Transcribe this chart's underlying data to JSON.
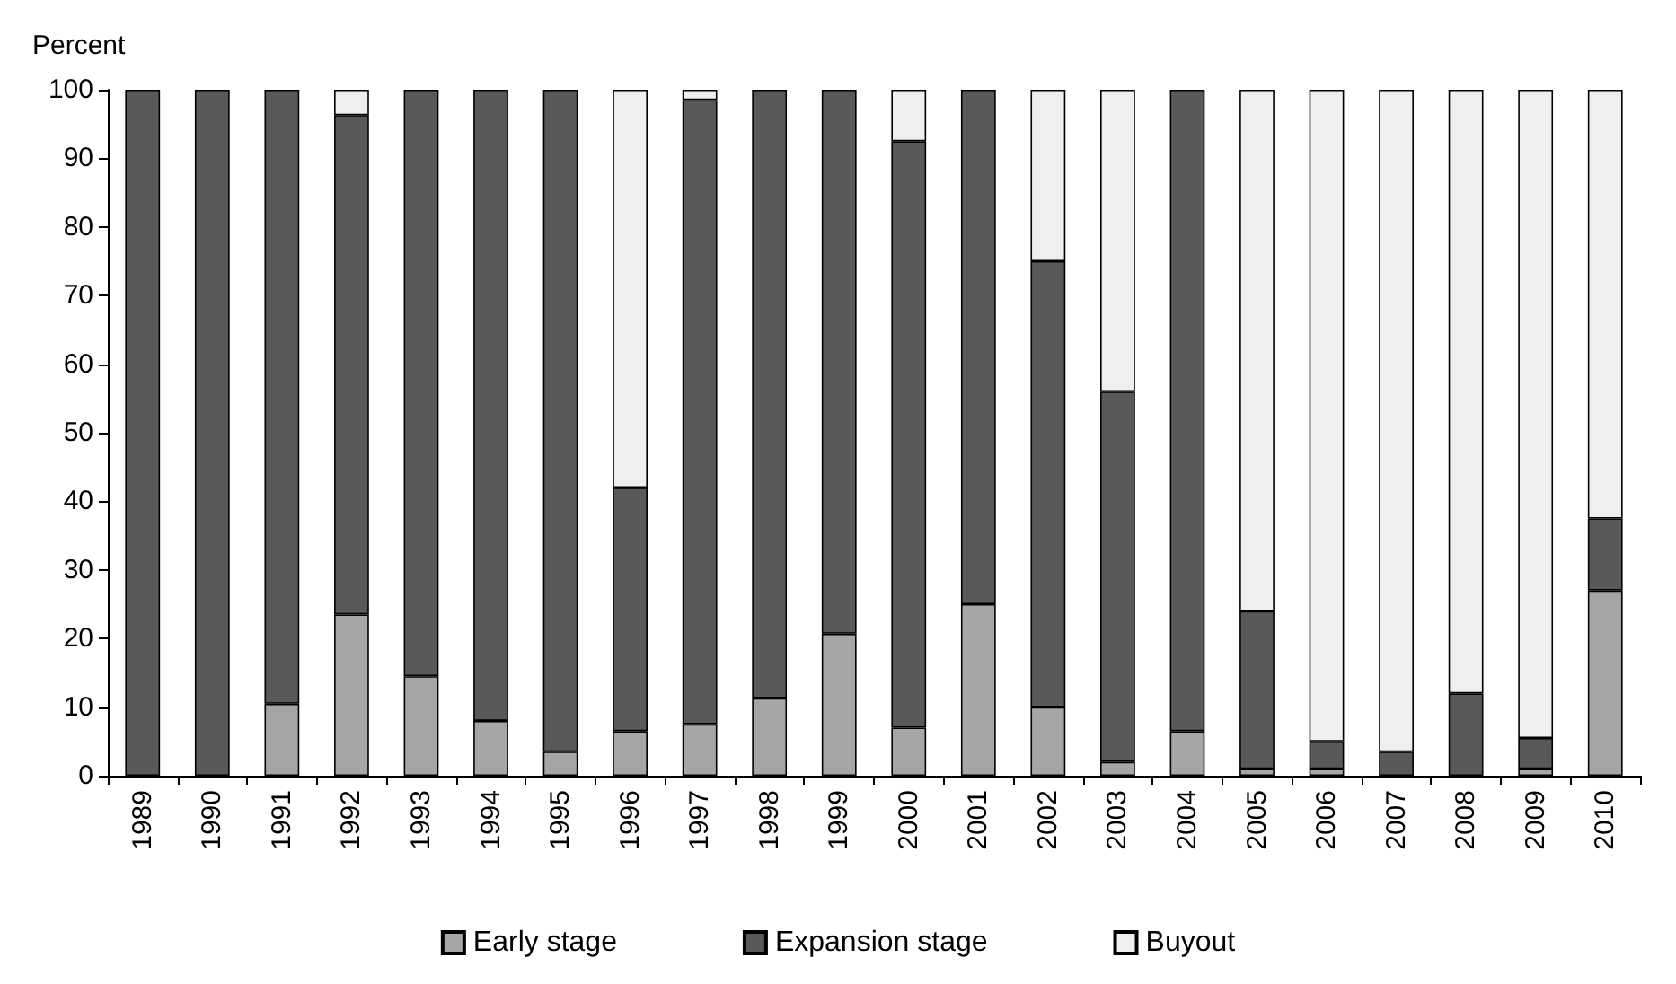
{
  "chart_data": {
    "type": "bar",
    "stacked": true,
    "ylabel": "Percent",
    "categories": [
      "1989",
      "1990",
      "1991",
      "1992",
      "1993",
      "1994",
      "1995",
      "1996",
      "1997",
      "1998",
      "1999",
      "2000",
      "2001",
      "2002",
      "2003",
      "2004",
      "2005",
      "2006",
      "2007",
      "2008",
      "2009",
      "2010"
    ],
    "series": [
      {
        "name": "Early stage",
        "color": "#a6a6a6",
        "values": [
          0,
          0,
          10.5,
          23.5,
          14.5,
          8,
          3.5,
          6.5,
          7.5,
          11.3,
          20.7,
          7,
          25,
          10,
          2,
          6.5,
          1,
          1,
          null,
          null,
          1,
          27
        ]
      },
      {
        "name": "Expansion stage",
        "color": "#595959",
        "values": [
          100,
          100,
          89.5,
          72.8,
          85.5,
          92,
          96.5,
          35.5,
          91,
          88.7,
          79.3,
          85.5,
          75,
          65,
          54,
          93.5,
          23,
          4,
          3.5,
          12,
          4.5,
          10.5
        ]
      },
      {
        "name": "Buyout",
        "color": "#efefef",
        "values": [
          0,
          0,
          0,
          3.7,
          0,
          0,
          0,
          58,
          1.5,
          0,
          0,
          7.5,
          0,
          25,
          44,
          null,
          76,
          95,
          96.5,
          88,
          94.5,
          62.5
        ]
      }
    ],
    "ylim": [
      0,
      100
    ],
    "yticks": [
      0,
      10,
      20,
      30,
      40,
      50,
      60,
      70,
      80,
      90,
      100
    ],
    "grid": false,
    "legend": "bottom"
  }
}
